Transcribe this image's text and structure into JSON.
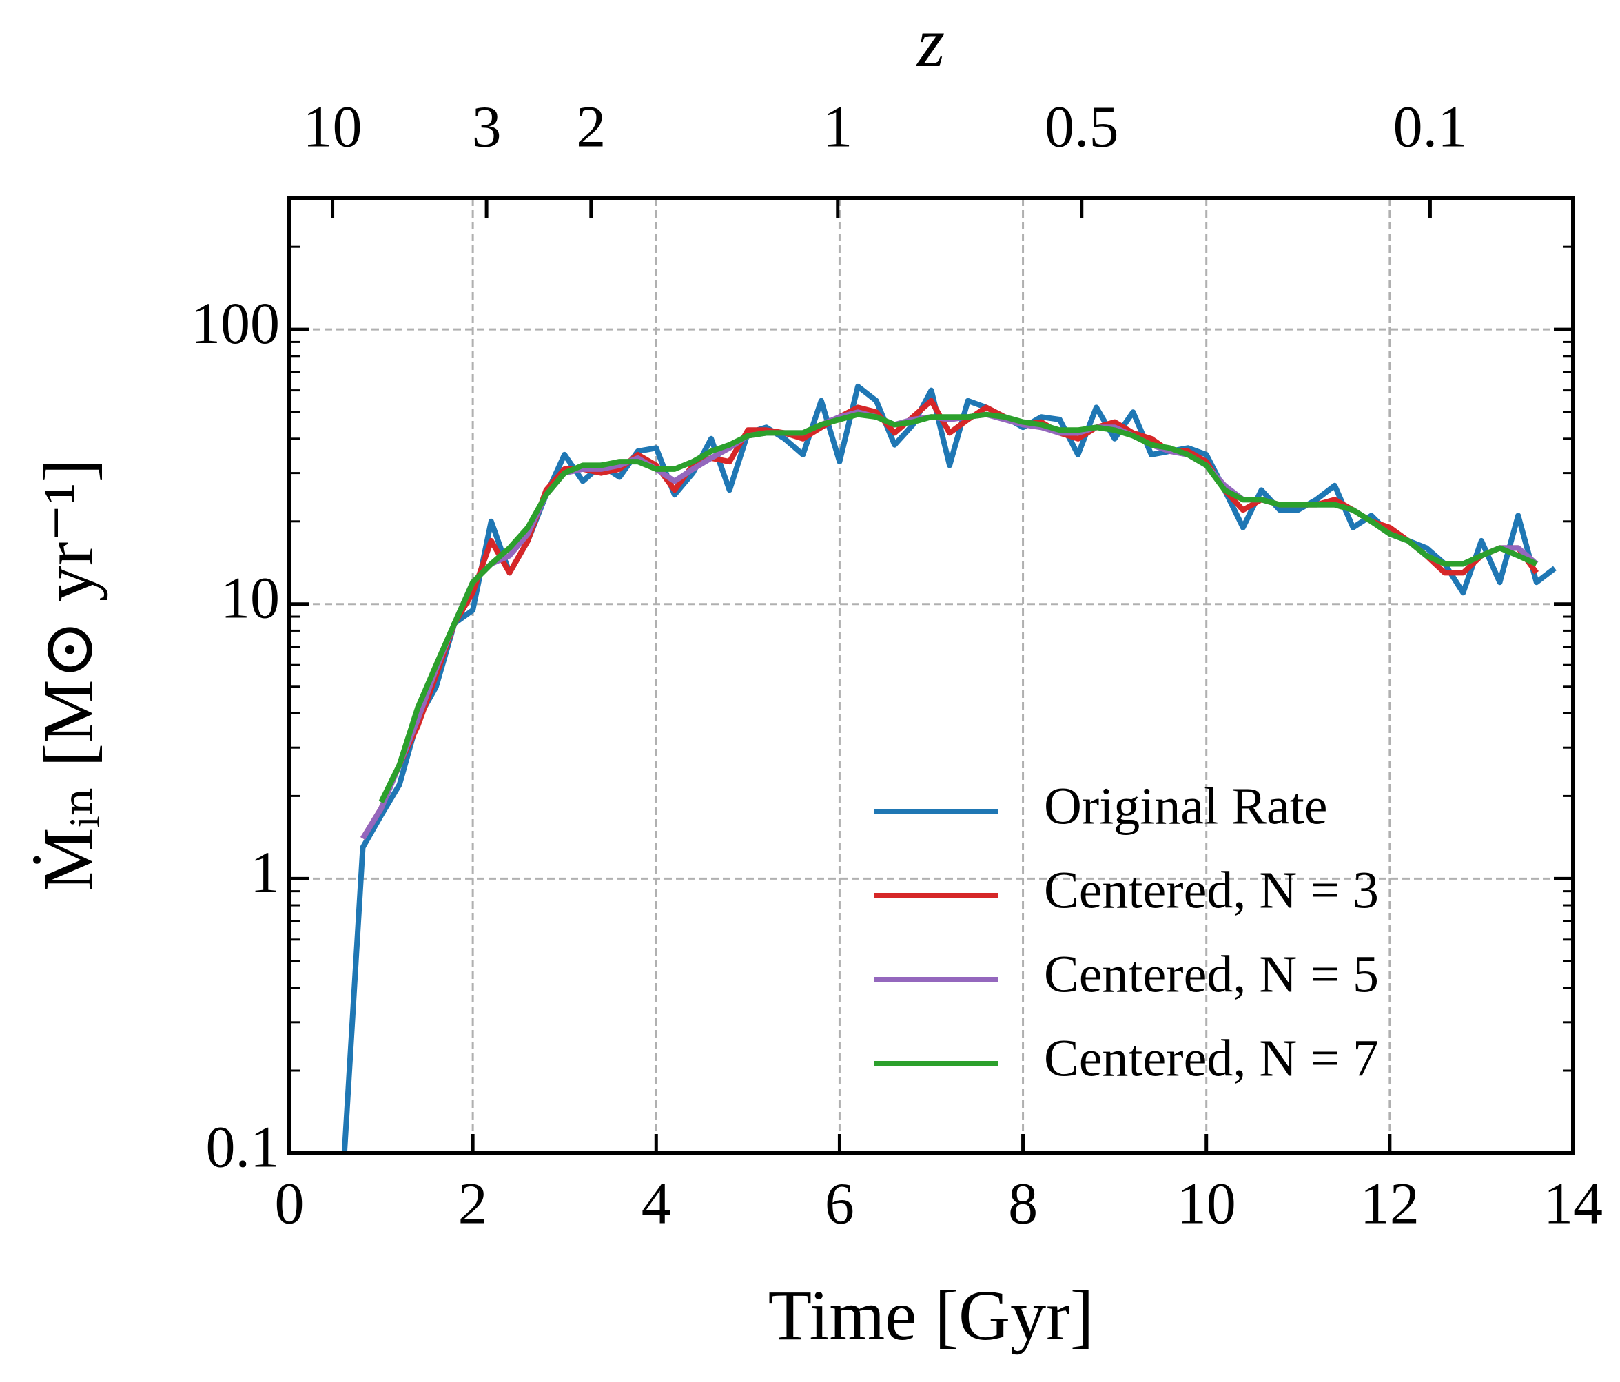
{
  "chart_data": {
    "type": "line",
    "xlabel": "Time [Gyr]",
    "ylabel": "Ṁᵢₙ [M⊙ yr⁻¹]",
    "x2label": "z",
    "xlim": [
      0,
      14
    ],
    "xticks": [
      0,
      2,
      4,
      6,
      8,
      10,
      12,
      14
    ],
    "ylim": [
      0.1,
      300
    ],
    "yticks": [
      0.1,
      1,
      10,
      100
    ],
    "yscale": "log",
    "x2ticks": [
      {
        "value": 0.47,
        "label": "10"
      },
      {
        "value": 2.15,
        "label": "3"
      },
      {
        "value": 3.29,
        "label": "2"
      },
      {
        "value": 5.98,
        "label": "1"
      },
      {
        "value": 8.64,
        "label": "0.5"
      },
      {
        "value": 12.44,
        "label": "0.1"
      }
    ],
    "grid": true,
    "legend": "lower right",
    "x": [
      0.6,
      0.8,
      1.0,
      1.2,
      1.4,
      1.6,
      1.8,
      2.0,
      2.2,
      2.4,
      2.6,
      2.8,
      3.0,
      3.2,
      3.4,
      3.6,
      3.8,
      4.0,
      4.2,
      4.4,
      4.6,
      4.8,
      5.0,
      5.2,
      5.4,
      5.6,
      5.8,
      6.0,
      6.2,
      6.4,
      6.6,
      6.8,
      7.0,
      7.2,
      7.4,
      7.6,
      7.8,
      8.0,
      8.2,
      8.4,
      8.6,
      8.8,
      9.0,
      9.2,
      9.4,
      9.6,
      9.8,
      10.0,
      10.2,
      10.4,
      10.6,
      10.8,
      11.0,
      11.2,
      11.4,
      11.6,
      11.8,
      12.0,
      12.2,
      12.4,
      12.6,
      12.8,
      13.0,
      13.2,
      13.4,
      13.6,
      13.8
    ],
    "series": [
      {
        "name": "Original Rate",
        "color": "#1f77b4",
        "values": [
          0.1,
          1.3,
          1.7,
          2.2,
          3.8,
          5.0,
          8.5,
          9.5,
          20,
          13,
          17,
          25,
          35,
          28,
          32,
          29,
          36,
          37,
          25,
          30,
          40,
          26,
          42,
          44,
          40,
          35,
          55,
          33,
          62,
          55,
          38,
          45,
          60,
          32,
          55,
          52,
          48,
          44,
          48,
          47,
          35,
          52,
          40,
          50,
          35,
          36,
          37,
          35,
          26,
          19,
          26,
          22,
          22,
          24,
          27,
          19,
          21,
          18,
          17,
          16,
          14,
          11,
          17,
          12,
          21,
          12,
          13.5
        ]
      },
      {
        "name": "Centered, N = 3",
        "color": "#d62728",
        "values": [
          null,
          1.4,
          1.8,
          2.6,
          3.6,
          5.5,
          8.5,
          11,
          17,
          13,
          17,
          26,
          31,
          31,
          30,
          31,
          35,
          32,
          26,
          32,
          34,
          33,
          43,
          43,
          42,
          40,
          44,
          48,
          52,
          50,
          42,
          48,
          55,
          42,
          47,
          52,
          48,
          45,
          46,
          42,
          40,
          44,
          46,
          42,
          40,
          36,
          36,
          33,
          26,
          22,
          24,
          23,
          23,
          23,
          24,
          22,
          20,
          19,
          17,
          15,
          13,
          13,
          15,
          16,
          16,
          13,
          null
        ]
      },
      {
        "name": "Centered, N = 5",
        "color": "#9467bd",
        "values": [
          null,
          1.4,
          1.8,
          2.6,
          3.8,
          5.8,
          8.5,
          12,
          14,
          15,
          18,
          25,
          30,
          31,
          31,
          32,
          34,
          31,
          28,
          31,
          34,
          37,
          41,
          42,
          42,
          42,
          45,
          48,
          50,
          48,
          45,
          47,
          48,
          47,
          48,
          49,
          47,
          45,
          44,
          42,
          42,
          44,
          44,
          41,
          38,
          36,
          35,
          32,
          27,
          24,
          24,
          23,
          23,
          23,
          23,
          22,
          20,
          18,
          17,
          15,
          14,
          14,
          15,
          16,
          16,
          14,
          null
        ]
      },
      {
        "name": "Centered, N = 7",
        "color": "#2ca02c",
        "values": [
          null,
          null,
          1.9,
          2.6,
          4.2,
          6,
          8.5,
          12,
          14,
          16,
          19,
          25,
          30,
          32,
          32,
          33,
          33,
          31,
          31,
          33,
          36,
          38,
          41,
          42,
          42,
          42,
          45,
          47,
          49,
          48,
          45,
          46,
          48,
          48,
          48,
          49,
          48,
          46,
          45,
          43,
          43,
          44,
          43,
          41,
          38,
          37,
          35,
          32,
          26,
          24,
          24,
          23,
          23,
          23,
          23,
          22,
          20,
          18,
          17,
          15,
          14,
          14,
          15,
          16,
          15,
          14,
          null
        ]
      }
    ]
  }
}
